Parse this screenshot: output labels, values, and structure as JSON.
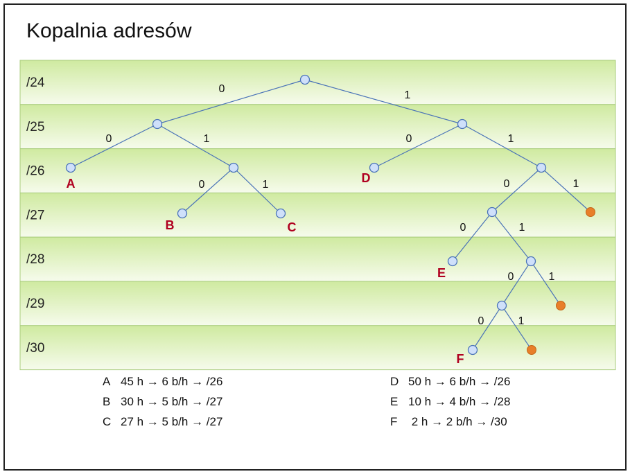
{
  "title": "Kopalnia adresów",
  "colors": {
    "band_top": "#cfeaa0",
    "band_bottom": "#f6fbec",
    "band_border": "#a9cc7c",
    "edge": "#4a73b8",
    "node_fill": "#cfe0fa",
    "node_full": "#e87f2a",
    "leaf_label": "#b00020"
  },
  "levels": [
    "/24",
    "/25",
    "/26",
    "/27",
    "/28",
    "/29",
    "/30"
  ],
  "edge_labels": {
    "left": "0",
    "right": "1"
  },
  "tree": {
    "nodes": [
      {
        "id": "n24",
        "level": 0
      },
      {
        "id": "n25L",
        "level": 1
      },
      {
        "id": "n25R",
        "level": 1
      },
      {
        "id": "A",
        "level": 2,
        "label": "A"
      },
      {
        "id": "n26LR",
        "level": 2
      },
      {
        "id": "D",
        "level": 2,
        "label": "D"
      },
      {
        "id": "n26RR",
        "level": 2
      },
      {
        "id": "B",
        "level": 3,
        "label": "B"
      },
      {
        "id": "C",
        "level": 3,
        "label": "C"
      },
      {
        "id": "n27RL",
        "level": 3
      },
      {
        "id": "o27",
        "level": 3,
        "full": true
      },
      {
        "id": "E",
        "level": 4,
        "label": "E"
      },
      {
        "id": "n28R",
        "level": 4
      },
      {
        "id": "n29L",
        "level": 5
      },
      {
        "id": "o29",
        "level": 5,
        "full": true
      },
      {
        "id": "F",
        "level": 6,
        "label": "F"
      },
      {
        "id": "o30",
        "level": 6,
        "full": true
      }
    ],
    "edges": [
      {
        "from": "n24",
        "to": "n25L",
        "bit": "0"
      },
      {
        "from": "n24",
        "to": "n25R",
        "bit": "1"
      },
      {
        "from": "n25L",
        "to": "A",
        "bit": "0"
      },
      {
        "from": "n25L",
        "to": "n26LR",
        "bit": "1"
      },
      {
        "from": "n26LR",
        "to": "B",
        "bit": "0"
      },
      {
        "from": "n26LR",
        "to": "C",
        "bit": "1"
      },
      {
        "from": "n25R",
        "to": "D",
        "bit": "0"
      },
      {
        "from": "n25R",
        "to": "n26RR",
        "bit": "1"
      },
      {
        "from": "n26RR",
        "to": "n27RL",
        "bit": "0"
      },
      {
        "from": "n26RR",
        "to": "o27",
        "bit": "1"
      },
      {
        "from": "n27RL",
        "to": "E",
        "bit": "0"
      },
      {
        "from": "n27RL",
        "to": "n28R",
        "bit": "1"
      },
      {
        "from": "n28R",
        "to": "n29L",
        "bit": "0"
      },
      {
        "from": "n28R",
        "to": "o29",
        "bit": "1"
      },
      {
        "from": "n29L",
        "to": "F",
        "bit": "0"
      },
      {
        "from": "n29L",
        "to": "o30",
        "bit": "1"
      }
    ]
  },
  "legend": {
    "left": [
      {
        "key": "A",
        "text": "45 h → 6 b/h → /26"
      },
      {
        "key": "B",
        "text": "30 h → 5 b/h → /27"
      },
      {
        "key": "C",
        "text": "27 h → 5 b/h → /27"
      }
    ],
    "right": [
      {
        "key": "D",
        "text": "50 h → 6 b/h → /26"
      },
      {
        "key": "E",
        "text": "10 h → 4 b/h → /28"
      },
      {
        "key": "F",
        "text": " 2 h → 2 b/h → /30"
      }
    ]
  }
}
